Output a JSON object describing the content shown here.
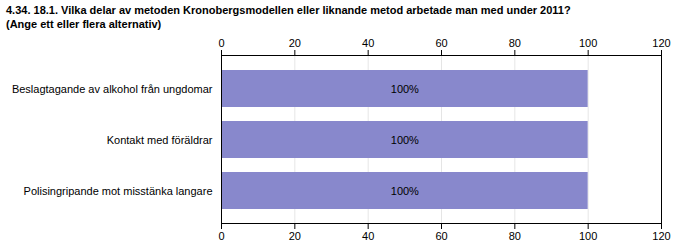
{
  "chart_data": {
    "type": "bar",
    "orientation": "horizontal",
    "title": "4.34. 18.1. Vilka delar av metoden Kronobergsmodellen eller liknande metod arbetade man med under 2011?",
    "subtitle": "(Ange ett eller flera alternativ)",
    "categories": [
      "Beslagtagande av alkohol från ungdomar",
      "Kontakt med föräldrar",
      "Polisingripande mot misstänka langare"
    ],
    "values": [
      100,
      100,
      100
    ],
    "value_labels": [
      "100%",
      "100%",
      "100%"
    ],
    "data_labels": true,
    "color": "#8888cc",
    "xlim": [
      0,
      120
    ],
    "xticks": [
      0,
      20,
      40,
      60,
      80,
      100,
      120
    ],
    "grid": true
  }
}
